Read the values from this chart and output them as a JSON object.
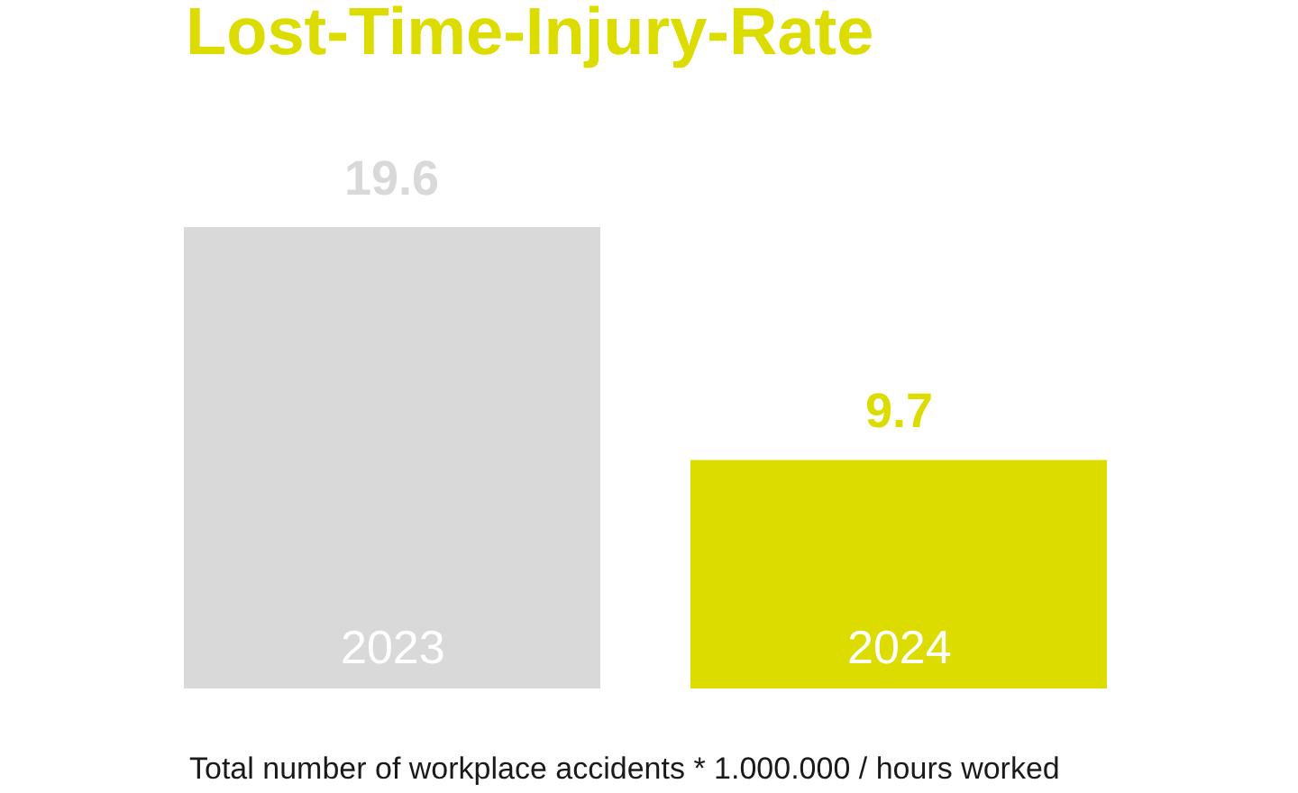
{
  "chart_data": {
    "type": "bar",
    "title": "Lost-Time-Injury-Rate",
    "categories": [
      "2023",
      "2024"
    ],
    "values": [
      19.6,
      9.7
    ],
    "colors": [
      "#d9d9d9",
      "#dcdc00"
    ],
    "data_labels": true,
    "annotations": [
      "Total number of workplace accidents * 1.000.000 / hours worked"
    ]
  }
}
